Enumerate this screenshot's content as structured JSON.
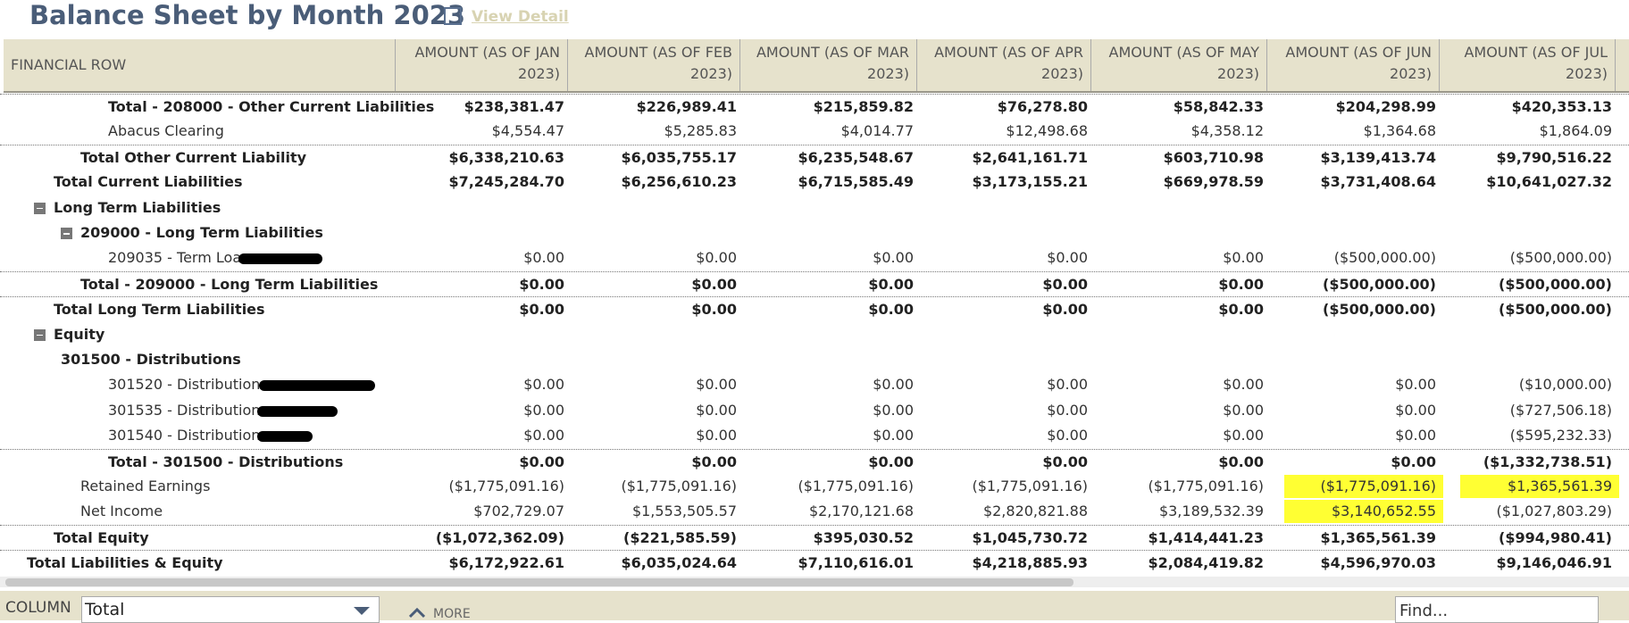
{
  "header": {
    "title": "Balance Sheet by Month 2023",
    "link": "View Detail"
  },
  "table": {
    "columns": [
      "FINANCIAL ROW",
      "AMOUNT (AS OF JAN 2023)",
      "AMOUNT (AS OF FEB 2023)",
      "AMOUNT (AS OF MAR 2023)",
      "AMOUNT (AS OF APR 2023)",
      "AMOUNT (AS OF MAY 2023)",
      "AMOUNT (AS OF JUN 2023)",
      "AMOUNT (AS OF JUL 2023)"
    ],
    "rows": [
      {
        "label": "Total - 208000 - Other Current Liabilities",
        "level": 3,
        "bold": true,
        "values": [
          "$238,381.47",
          "$226,989.41",
          "$215,859.82",
          "$76,278.80",
          "$58,842.33",
          "$204,298.99",
          "$420,353.13"
        ]
      },
      {
        "label": "Abacus Clearing",
        "level": 3,
        "bold": false,
        "values": [
          "$4,554.47",
          "$5,285.83",
          "$4,014.77",
          "$12,498.68",
          "$4,358.12",
          "$1,364.68",
          "$1,864.09"
        ]
      },
      {
        "label": "Total Other Current Liability",
        "level": 2,
        "bold": true,
        "values": [
          "$6,338,210.63",
          "$6,035,755.17",
          "$6,235,548.67",
          "$2,641,161.71",
          "$603,710.98",
          "$3,139,413.74",
          "$9,790,516.22"
        ]
      },
      {
        "label": "Total Current Liabilities",
        "level": 1,
        "bold": true,
        "values": [
          "$7,245,284.70",
          "$6,256,610.23",
          "$6,715,585.49",
          "$3,173,155.21",
          "$669,978.59",
          "$3,731,408.64",
          "$10,641,027.32"
        ]
      },
      {
        "label": "Long Term Liabilities",
        "level": 1,
        "bold": true,
        "collapsible": true,
        "values": []
      },
      {
        "label": "209000 - Long Term Liabilities",
        "level": 2,
        "bold": true,
        "collapsible": true,
        "values": []
      },
      {
        "label": "209035 - Term Loan",
        "level": 3,
        "bold": false,
        "values": [
          "$0.00",
          "$0.00",
          "$0.00",
          "$0.00",
          "$0.00",
          "($500,000.00)",
          "($500,000.00)"
        ]
      },
      {
        "label": "Total - 209000 - Long Term Liabilities",
        "level": 2,
        "bold": true,
        "values": [
          "$0.00",
          "$0.00",
          "$0.00",
          "$0.00",
          "$0.00",
          "($500,000.00)",
          "($500,000.00)"
        ]
      },
      {
        "label": "Total Long Term Liabilities",
        "level": 1,
        "bold": true,
        "values": [
          "$0.00",
          "$0.00",
          "$0.00",
          "$0.00",
          "$0.00",
          "($500,000.00)",
          "($500,000.00)"
        ]
      },
      {
        "label": "Equity",
        "level": 1,
        "bold": true,
        "collapsible": true,
        "values": []
      },
      {
        "label": "301500 - Distributions",
        "level": 2,
        "bold": true,
        "values": []
      },
      {
        "label": "301520 - Distributions",
        "level": 3,
        "bold": false,
        "values": [
          "$0.00",
          "$0.00",
          "$0.00",
          "$0.00",
          "$0.00",
          "$0.00",
          "($10,000.00)"
        ]
      },
      {
        "label": "301535 - Distribution -",
        "level": 3,
        "bold": false,
        "values": [
          "$0.00",
          "$0.00",
          "$0.00",
          "$0.00",
          "$0.00",
          "$0.00",
          "($727,506.18)"
        ]
      },
      {
        "label": "301540 - Distribution -",
        "level": 3,
        "bold": false,
        "values": [
          "$0.00",
          "$0.00",
          "$0.00",
          "$0.00",
          "$0.00",
          "$0.00",
          "($595,232.33)"
        ]
      },
      {
        "label": "Total - 301500 - Distributions",
        "level": 3,
        "bold": true,
        "values": [
          "$0.00",
          "$0.00",
          "$0.00",
          "$0.00",
          "$0.00",
          "$0.00",
          "($1,332,738.51)"
        ]
      },
      {
        "label": "Retained Earnings",
        "level": 2,
        "bold": false,
        "values": [
          "($1,775,091.16)",
          "($1,775,091.16)",
          "($1,775,091.16)",
          "($1,775,091.16)",
          "($1,775,091.16)",
          "($1,775,091.16)",
          "$1,365,561.39"
        ]
      },
      {
        "label": "Net Income",
        "level": 2,
        "bold": false,
        "values": [
          "$702,729.07",
          "$1,553,505.57",
          "$2,170,121.68",
          "$2,820,821.88",
          "$3,189,532.39",
          "$3,140,652.55",
          "($1,027,803.29)"
        ]
      },
      {
        "label": "Total Equity",
        "level": 1,
        "bold": true,
        "values": [
          "($1,072,362.09)",
          "($221,585.59)",
          "$395,030.52",
          "$1,045,730.72",
          "$1,414,441.23",
          "$1,365,561.39",
          "($994,980.41)"
        ]
      },
      {
        "label": "Total Liabilities & Equity",
        "level": 0,
        "bold": true,
        "values": [
          "$6,172,922.61",
          "$6,035,024.64",
          "$7,110,616.01",
          "$4,218,885.93",
          "$2,084,419.82",
          "$4,596,970.03",
          "$9,146,046.91"
        ]
      }
    ]
  },
  "footer": {
    "column_label": "COLUMN",
    "column_value": "Total",
    "more": "MORE",
    "find": "Find..."
  }
}
